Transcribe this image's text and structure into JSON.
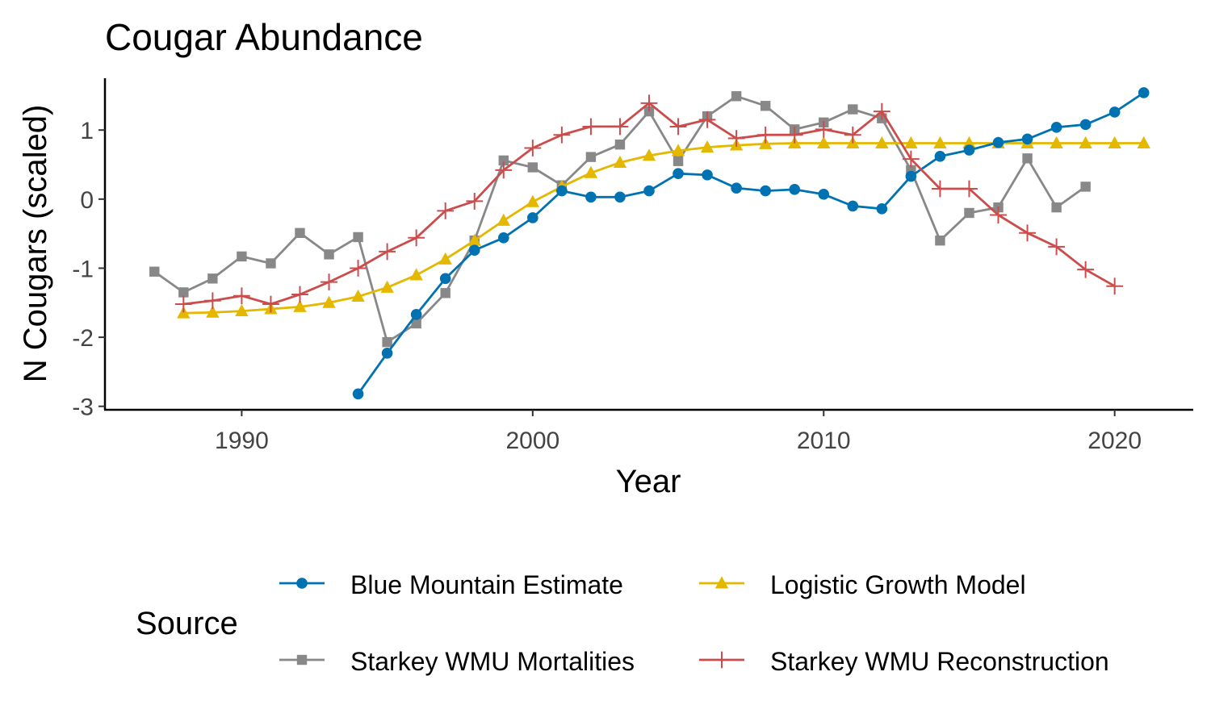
{
  "chart_data": {
    "type": "line",
    "title": "Cougar Abundance",
    "xlabel": "Year",
    "ylabel": "N Cougars (scaled)",
    "xlim": [
      1985.3,
      2022.7
    ],
    "ylim": [
      -3.05,
      1.75
    ],
    "xticks": [
      1990,
      2000,
      2010,
      2020
    ],
    "yticks": [
      -3,
      -2,
      -1,
      0,
      1
    ],
    "grid": false,
    "legend": {
      "title": "Source",
      "placement": "bottom"
    },
    "series": [
      {
        "name": "Blue Mountain Estimate",
        "color": "#0072B2",
        "marker": "circle",
        "x": [
          1994,
          1995,
          1996,
          1997,
          1998,
          1999,
          2000,
          2001,
          2002,
          2003,
          2004,
          2005,
          2006,
          2007,
          2008,
          2009,
          2010,
          2011,
          2012,
          2013,
          2014,
          2015,
          2016,
          2017,
          2018,
          2019,
          2020,
          2021
        ],
        "y": [
          -2.82,
          -2.23,
          -1.67,
          -1.15,
          -0.74,
          -0.56,
          -0.27,
          0.12,
          0.03,
          0.03,
          0.12,
          0.37,
          0.35,
          0.16,
          0.12,
          0.14,
          0.07,
          -0.1,
          -0.14,
          0.33,
          0.62,
          0.71,
          0.82,
          0.87,
          1.04,
          1.08,
          1.26,
          1.54
        ]
      },
      {
        "name": "Logistic Growth Model",
        "color": "#E5B800",
        "marker": "triangle",
        "x": [
          1988,
          1989,
          1990,
          1991,
          1992,
          1993,
          1994,
          1995,
          1996,
          1997,
          1998,
          1999,
          2000,
          2001,
          2002,
          2003,
          2004,
          2005,
          2006,
          2007,
          2008,
          2009,
          2010,
          2011,
          2012,
          2013,
          2014,
          2015,
          2016,
          2017,
          2018,
          2019,
          2020,
          2021
        ],
        "y": [
          -1.65,
          -1.64,
          -1.62,
          -1.59,
          -1.56,
          -1.5,
          -1.41,
          -1.28,
          -1.1,
          -0.87,
          -0.6,
          -0.31,
          -0.04,
          0.18,
          0.38,
          0.53,
          0.63,
          0.7,
          0.75,
          0.78,
          0.8,
          0.81,
          0.81,
          0.81,
          0.81,
          0.81,
          0.81,
          0.81,
          0.81,
          0.81,
          0.81,
          0.81,
          0.81,
          0.81
        ]
      },
      {
        "name": "Starkey WMU Mortalities",
        "color": "#888888",
        "marker": "square",
        "x": [
          1987,
          1988,
          1989,
          1990,
          1991,
          1992,
          1993,
          1994,
          1995,
          1996,
          1997,
          1998,
          1999,
          2000,
          2001,
          2002,
          2003,
          2004,
          2005,
          2006,
          2007,
          2008,
          2009,
          2010,
          2011,
          2012,
          2013,
          2014,
          2015,
          2016,
          2017,
          2018,
          2019
        ],
        "y": [
          -1.05,
          -1.35,
          -1.15,
          -0.83,
          -0.93,
          -0.49,
          -0.8,
          -0.55,
          -2.07,
          -1.8,
          -1.36,
          -0.6,
          0.56,
          0.46,
          0.2,
          0.61,
          0.79,
          1.27,
          0.55,
          1.2,
          1.49,
          1.35,
          1.01,
          1.11,
          1.3,
          1.17,
          0.42,
          -0.6,
          -0.2,
          -0.12,
          0.59,
          -0.12,
          0.18
        ]
      },
      {
        "name": "Starkey WMU Reconstruction",
        "color": "#CC4C4C",
        "marker": "plus",
        "x": [
          1988,
          1989,
          1990,
          1991,
          1992,
          1993,
          1994,
          1995,
          1996,
          1997,
          1998,
          1999,
          2000,
          2001,
          2002,
          2003,
          2004,
          2005,
          2006,
          2007,
          2008,
          2009,
          2010,
          2011,
          2012,
          2013,
          2014,
          2015,
          2016,
          2017,
          2018,
          2019,
          2020
        ],
        "y": [
          -1.52,
          -1.47,
          -1.4,
          -1.52,
          -1.38,
          -1.2,
          -1.0,
          -0.76,
          -0.56,
          -0.17,
          -0.03,
          0.42,
          0.74,
          0.93,
          1.05,
          1.05,
          1.39,
          1.05,
          1.15,
          0.88,
          0.93,
          0.93,
          1.01,
          0.93,
          1.27,
          0.58,
          0.15,
          0.15,
          -0.23,
          -0.49,
          -0.69,
          -1.02,
          -1.26
        ]
      }
    ]
  }
}
